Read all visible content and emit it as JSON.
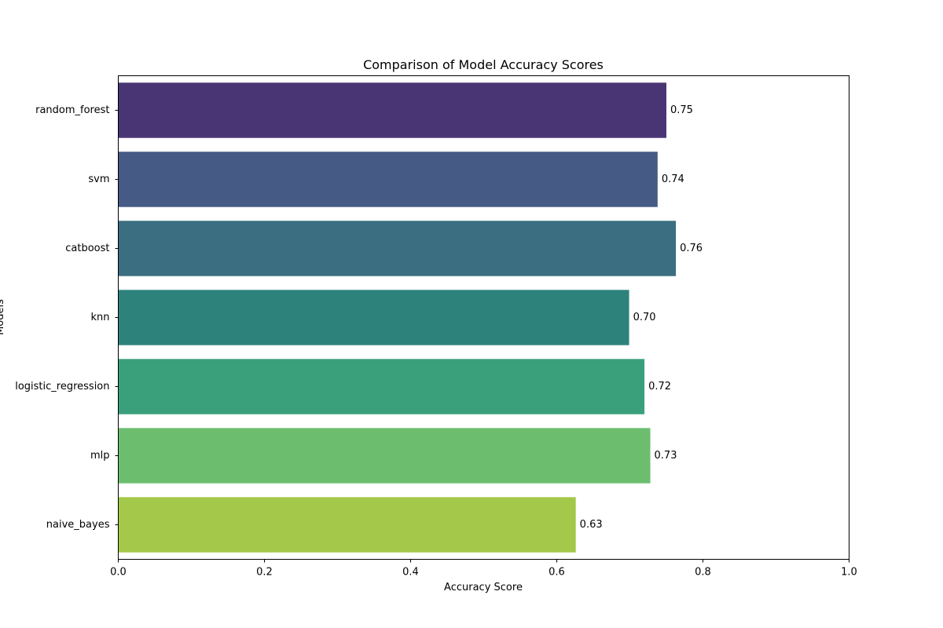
{
  "chart_data": {
    "type": "bar",
    "orientation": "horizontal",
    "title": "Comparison of Model Accuracy Scores",
    "xlabel": "Accuracy Score",
    "ylabel": "Models",
    "xlim": [
      0,
      1.0
    ],
    "xticks": [
      "0.0",
      "0.2",
      "0.4",
      "0.6",
      "0.8",
      "1.0"
    ],
    "grid": false,
    "legend": "none",
    "categories": [
      "random_forest",
      "svm",
      "catboost",
      "knn",
      "logistic_regression",
      "mlp",
      "naive_bayes"
    ],
    "values": [
      0.75,
      0.738,
      0.763,
      0.699,
      0.72,
      0.728,
      0.626
    ],
    "value_labels": [
      "0.75",
      "0.74",
      "0.76",
      "0.70",
      "0.72",
      "0.73",
      "0.63"
    ],
    "colors": [
      "#4a3574",
      "#455a84",
      "#3a6e80",
      "#2d837c",
      "#3aa07c",
      "#6cbe6e",
      "#a3c84a"
    ]
  }
}
